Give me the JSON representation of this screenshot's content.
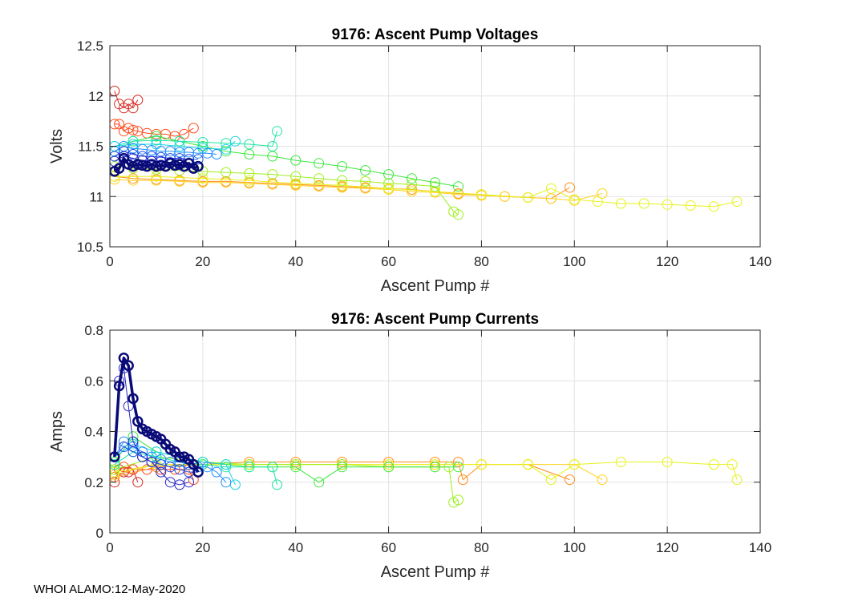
{
  "footer": "WHOI ALAMO:12-May-2020",
  "colors": {
    "line_palette": [
      "#d7261e",
      "#ff4a1c",
      "#ff8c1a",
      "#ffd21a",
      "#e6f21a",
      "#9cf01a",
      "#3ce63c",
      "#1ae6a0",
      "#1ad2e6",
      "#1a8cff",
      "#1a4ae6",
      "#2424c8",
      "#0a0a78"
    ],
    "highlight_series": "#0a0a78"
  },
  "chart_data": [
    {
      "type": "line",
      "title": "9176: Ascent Pump Voltages",
      "xlabel": "Ascent Pump #",
      "ylabel": "Volts",
      "xlim": [
        0,
        140
      ],
      "ylim": [
        10.5,
        12.5
      ],
      "xticks": [
        0,
        20,
        40,
        60,
        80,
        100,
        120,
        140
      ],
      "yticks": [
        10.5,
        11,
        11.5,
        12,
        12.5
      ],
      "ytick_labels": [
        "10.5",
        "11",
        "11.5",
        "12",
        "12.5"
      ],
      "grid": true,
      "marker": "open circle",
      "series": [
        {
          "color": "#d7261e",
          "x": [
            1,
            2,
            3,
            4,
            5,
            6
          ],
          "y": [
            12.05,
            11.92,
            11.88,
            11.92,
            11.88,
            11.96
          ]
        },
        {
          "color": "#ff4a1c",
          "x": [
            1,
            2,
            3,
            4,
            5,
            6,
            8,
            10,
            12,
            14,
            16,
            18
          ],
          "y": [
            11.72,
            11.72,
            11.65,
            11.68,
            11.66,
            11.65,
            11.63,
            11.62,
            11.62,
            11.6,
            11.62,
            11.68
          ]
        },
        {
          "color": "#ff8c1a",
          "x": [
            1,
            5,
            10,
            15,
            20,
            25,
            30,
            35,
            40,
            45,
            50,
            55,
            60,
            65,
            70,
            75,
            80,
            85,
            90,
            95,
            99
          ],
          "y": [
            11.2,
            11.18,
            11.17,
            11.16,
            11.15,
            11.15,
            11.14,
            11.13,
            11.12,
            11.11,
            11.1,
            11.09,
            11.08,
            11.07,
            11.05,
            11.03,
            11.02,
            11.0,
            10.99,
            10.98,
            11.09
          ]
        },
        {
          "color": "#ffd21a",
          "x": [
            1,
            5,
            10,
            15,
            20,
            25,
            30,
            35,
            40,
            45,
            50,
            55,
            60,
            65,
            70,
            75,
            80,
            85,
            90,
            95,
            100,
            106
          ],
          "y": [
            11.17,
            11.16,
            11.16,
            11.15,
            11.14,
            11.14,
            11.13,
            11.12,
            11.11,
            11.1,
            11.09,
            11.08,
            11.07,
            11.05,
            11.04,
            11.02,
            11.01,
            11.0,
            10.99,
            10.98,
            10.96,
            11.03
          ]
        },
        {
          "color": "#e6f21a",
          "x": [
            1,
            10,
            20,
            30,
            40,
            50,
            60,
            70,
            80,
            90,
            95,
            100,
            105,
            110,
            115,
            120,
            125,
            130,
            135
          ],
          "y": [
            11.2,
            11.2,
            11.18,
            11.16,
            11.13,
            11.11,
            11.08,
            11.05,
            11.02,
            10.99,
            11.08,
            10.97,
            10.95,
            10.93,
            10.93,
            10.92,
            10.91,
            10.9,
            10.95
          ]
        },
        {
          "color": "#9cf01a",
          "x": [
            1,
            5,
            10,
            15,
            20,
            25,
            30,
            35,
            40,
            45,
            50,
            55,
            60,
            65,
            70,
            74,
            75
          ],
          "y": [
            11.3,
            11.28,
            11.27,
            11.26,
            11.25,
            11.24,
            11.23,
            11.22,
            11.2,
            11.18,
            11.16,
            11.15,
            11.13,
            11.12,
            11.1,
            10.85,
            10.82
          ]
        },
        {
          "color": "#3ce63c",
          "x": [
            1,
            5,
            10,
            15,
            20,
            25,
            30,
            35,
            40,
            45,
            50,
            55,
            60,
            65,
            70,
            75
          ],
          "y": [
            11.45,
            11.55,
            11.6,
            11.55,
            11.5,
            11.45,
            11.42,
            11.4,
            11.36,
            11.33,
            11.3,
            11.26,
            11.22,
            11.18,
            11.14,
            11.1
          ]
        },
        {
          "color": "#1ae6a0",
          "x": [
            1,
            5,
            10,
            15,
            20,
            25,
            30,
            35,
            36
          ],
          "y": [
            11.5,
            11.55,
            11.56,
            11.55,
            11.54,
            11.53,
            11.52,
            11.5,
            11.65
          ]
        },
        {
          "color": "#1ad2e6",
          "x": [
            1,
            5,
            10,
            15,
            20,
            25,
            27
          ],
          "y": [
            11.5,
            11.52,
            11.52,
            11.5,
            11.48,
            11.47,
            11.55
          ]
        },
        {
          "color": "#1a8cff",
          "x": [
            1,
            3,
            5,
            7,
            9,
            11,
            13,
            15,
            17,
            19,
            21,
            23
          ],
          "y": [
            11.45,
            11.5,
            11.48,
            11.47,
            11.46,
            11.45,
            11.45,
            11.44,
            11.44,
            11.43,
            11.43,
            11.42
          ]
        },
        {
          "color": "#1a4ae6",
          "x": [
            1,
            3,
            5,
            7,
            9,
            11,
            13,
            15,
            17,
            19
          ],
          "y": [
            11.4,
            11.45,
            11.42,
            11.4,
            11.4,
            11.39,
            11.38,
            11.38,
            11.37,
            11.37
          ]
        },
        {
          "color": "#2424c8",
          "x": [
            1,
            3,
            5,
            7,
            9,
            11,
            13,
            15,
            17
          ],
          "y": [
            11.35,
            11.4,
            11.38,
            11.36,
            11.35,
            11.35,
            11.34,
            11.34,
            11.33
          ]
        },
        {
          "color": "#0a0a78",
          "bold": true,
          "x": [
            1,
            2,
            3,
            4,
            5,
            6,
            7,
            8,
            9,
            10,
            11,
            12,
            13,
            14,
            15,
            16,
            17,
            18,
            19
          ],
          "y": [
            11.25,
            11.28,
            11.38,
            11.32,
            11.3,
            11.32,
            11.31,
            11.3,
            11.32,
            11.3,
            11.31,
            11.3,
            11.33,
            11.31,
            11.32,
            11.3,
            11.33,
            11.28,
            11.3
          ]
        }
      ]
    },
    {
      "type": "line",
      "title": "9176: Ascent Pump Currents",
      "xlabel": "Ascent Pump #",
      "ylabel": "Amps",
      "xlim": [
        0,
        140
      ],
      "ylim": [
        0,
        0.8
      ],
      "xticks": [
        0,
        20,
        40,
        60,
        80,
        100,
        120,
        140
      ],
      "yticks": [
        0,
        0.2,
        0.4,
        0.6,
        0.8
      ],
      "ytick_labels": [
        "0",
        "0.2",
        "0.4",
        "0.6",
        "0.8"
      ],
      "grid": true,
      "marker": "open circle",
      "series": [
        {
          "color": "#d7261e",
          "x": [
            1,
            2,
            3,
            4,
            5,
            6
          ],
          "y": [
            0.2,
            0.25,
            0.24,
            0.24,
            0.25,
            0.2
          ]
        },
        {
          "color": "#ff4a1c",
          "x": [
            1,
            3,
            5,
            8,
            11,
            14,
            17,
            18
          ],
          "y": [
            0.23,
            0.26,
            0.25,
            0.25,
            0.25,
            0.25,
            0.25,
            0.21
          ]
        },
        {
          "color": "#ff8c1a",
          "x": [
            1,
            10,
            20,
            30,
            40,
            50,
            60,
            70,
            75,
            76,
            80,
            90,
            99
          ],
          "y": [
            0.22,
            0.26,
            0.27,
            0.28,
            0.28,
            0.28,
            0.28,
            0.28,
            0.28,
            0.21,
            0.27,
            0.27,
            0.21
          ]
        },
        {
          "color": "#ffd21a",
          "x": [
            1,
            10,
            20,
            30,
            40,
            50,
            60,
            70,
            80,
            90,
            100,
            106
          ],
          "y": [
            0.23,
            0.27,
            0.27,
            0.27,
            0.27,
            0.27,
            0.27,
            0.27,
            0.27,
            0.27,
            0.27,
            0.21
          ]
        },
        {
          "color": "#e6f21a",
          "x": [
            1,
            10,
            20,
            30,
            40,
            50,
            60,
            70,
            80,
            90,
            95,
            100,
            110,
            120,
            130,
            134,
            135
          ],
          "y": [
            0.24,
            0.27,
            0.27,
            0.27,
            0.27,
            0.27,
            0.27,
            0.27,
            0.27,
            0.27,
            0.21,
            0.27,
            0.28,
            0.28,
            0.27,
            0.27,
            0.21
          ]
        },
        {
          "color": "#9cf01a",
          "x": [
            1,
            10,
            20,
            30,
            40,
            50,
            60,
            70,
            73,
            74,
            75
          ],
          "y": [
            0.25,
            0.3,
            0.28,
            0.27,
            0.27,
            0.27,
            0.26,
            0.26,
            0.26,
            0.12,
            0.13
          ]
        },
        {
          "color": "#3ce63c",
          "x": [
            1,
            5,
            10,
            15,
            20,
            25,
            30,
            35,
            40,
            45,
            50,
            60,
            70,
            75
          ],
          "y": [
            0.28,
            0.38,
            0.32,
            0.3,
            0.28,
            0.27,
            0.26,
            0.26,
            0.26,
            0.2,
            0.26,
            0.26,
            0.26,
            0.26
          ]
        },
        {
          "color": "#1ae6a0",
          "x": [
            1,
            5,
            10,
            15,
            20,
            25,
            30,
            35,
            36
          ],
          "y": [
            0.27,
            0.32,
            0.3,
            0.28,
            0.27,
            0.26,
            0.26,
            0.26,
            0.19
          ]
        },
        {
          "color": "#1ad2e6",
          "x": [
            1,
            5,
            10,
            15,
            20,
            25,
            27
          ],
          "y": [
            0.3,
            0.35,
            0.32,
            0.3,
            0.28,
            0.27,
            0.19
          ]
        },
        {
          "color": "#1a8cff",
          "x": [
            1,
            3,
            5,
            7,
            9,
            11,
            13,
            15,
            17,
            19,
            21,
            23,
            25
          ],
          "y": [
            0.3,
            0.36,
            0.34,
            0.32,
            0.3,
            0.29,
            0.28,
            0.28,
            0.27,
            0.26,
            0.26,
            0.24,
            0.2
          ]
        },
        {
          "color": "#1a4ae6",
          "x": [
            1,
            3,
            5,
            7,
            9,
            11,
            13,
            15,
            17,
            19
          ],
          "y": [
            0.3,
            0.34,
            0.32,
            0.3,
            0.28,
            0.27,
            0.26,
            0.25,
            0.24,
            0.24
          ]
        },
        {
          "color": "#2424c8",
          "x": [
            1,
            2,
            3,
            4,
            5,
            7,
            9,
            11,
            13,
            15,
            17
          ],
          "y": [
            0.3,
            0.6,
            0.65,
            0.5,
            0.36,
            0.3,
            0.28,
            0.24,
            0.2,
            0.19,
            0.2
          ]
        },
        {
          "color": "#0a0a78",
          "bold": true,
          "x": [
            1,
            2,
            3,
            4,
            5,
            6,
            7,
            8,
            9,
            10,
            11,
            12,
            13,
            14,
            15,
            16,
            17,
            18,
            19
          ],
          "y": [
            0.3,
            0.58,
            0.69,
            0.66,
            0.53,
            0.44,
            0.41,
            0.4,
            0.39,
            0.38,
            0.37,
            0.35,
            0.33,
            0.32,
            0.3,
            0.3,
            0.29,
            0.27,
            0.24
          ]
        }
      ]
    }
  ]
}
